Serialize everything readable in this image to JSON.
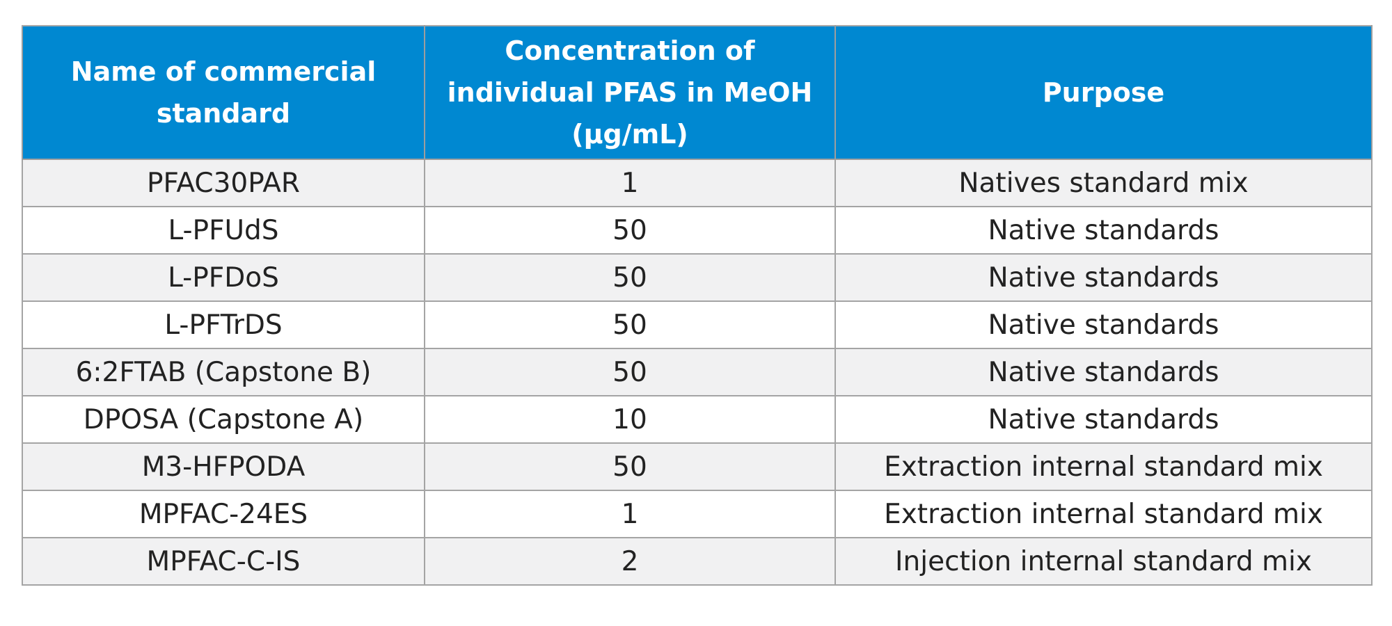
{
  "table": {
    "headers": [
      "Name of commercial standard",
      "Concentration of individual PFAS in MeOH (µg/mL)",
      "Purpose"
    ],
    "rows": [
      [
        "PFAC30PAR",
        "1",
        "Natives standard mix"
      ],
      [
        "L-PFUdS",
        "50",
        "Native standards"
      ],
      [
        "L-PFDoS",
        "50",
        "Native standards"
      ],
      [
        "L-PFTrDS",
        "50",
        "Native standards"
      ],
      [
        "6:2FTAB (Capstone B)",
        "50",
        "Native standards"
      ],
      [
        "DPOSA (Capstone A)",
        "10",
        "Native standards"
      ],
      [
        "M3-HFPODA",
        "50",
        "Extraction internal standard mix"
      ],
      [
        "MPFAC-24ES",
        "1",
        "Extraction internal standard mix"
      ],
      [
        "MPFAC-C-IS",
        "2",
        "Injection internal standard mix"
      ]
    ]
  },
  "colors": {
    "header_background": "#0088d1",
    "header_text": "#ffffff",
    "row_alt_background": "#f1f1f2",
    "border": "#a4a4a4"
  }
}
